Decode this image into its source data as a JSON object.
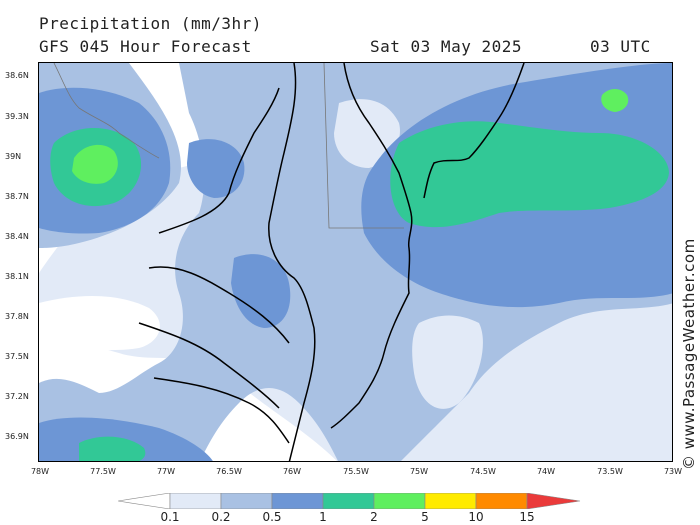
{
  "header": {
    "title": "Precipitation (mm/3hr)",
    "model": "GFS 045 Hour Forecast",
    "date": "Sat 03 May 2025",
    "time": "03 UTC"
  },
  "axes": {
    "lat_labels": [
      "38.6N",
      "39.3N",
      "39N",
      "38.7N",
      "38.4N",
      "38.1N",
      "37.8N",
      "37.5N",
      "37.2N",
      "36.9N"
    ],
    "lon_labels": [
      "78W",
      "77.5W",
      "77W",
      "76.5W",
      "76W",
      "75.5W",
      "75W",
      "74.5W",
      "74W",
      "73.5W",
      "73W"
    ]
  },
  "watermark": "© www.PassageWeather.com",
  "legend": {
    "labels": [
      "0.1",
      "0.2",
      "0.5",
      "1",
      "2",
      "5",
      "10",
      "15"
    ],
    "colors": [
      "#ffffff",
      "#e2eaf7",
      "#a9c1e3",
      "#6d96d5",
      "#32c896",
      "#5fef5f",
      "#ffeb00",
      "#ff8a00",
      "#ea3a3a"
    ]
  },
  "colors": {
    "bin_0_1": "#e2eaf7",
    "bin_0_2": "#a9c1e3",
    "bin_0_5": "#6d96d5",
    "bin_1": "#32c896",
    "bin_2": "#5fef5f"
  }
}
